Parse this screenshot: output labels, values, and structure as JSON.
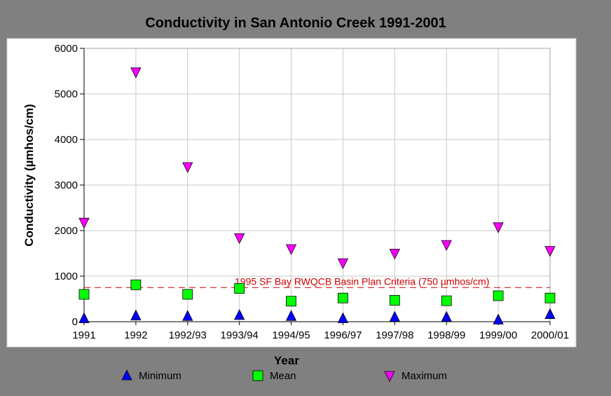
{
  "chart_data": {
    "type": "scatter",
    "title": "Conductivity in San Antonio Creek 1991-2001",
    "xlabel": "Year",
    "ylabel": "Conductivity (µmhos/cm)",
    "ylim": [
      0,
      6000
    ],
    "yticks": [
      0,
      1000,
      2000,
      3000,
      4000,
      5000,
      6000
    ],
    "grid": true,
    "legend_position": "bottom",
    "categories": [
      "1991",
      "1992",
      "1992/93",
      "1993/94",
      "1994/95",
      "1996/97",
      "1997/98",
      "1998/99",
      "1999/00",
      "2000/01"
    ],
    "series": [
      {
        "name": "Minimum",
        "marker": "triangle-up",
        "color": "#0000ff",
        "values": [
          70,
          130,
          120,
          140,
          120,
          70,
          100,
          100,
          40,
          160
        ]
      },
      {
        "name": "Mean",
        "marker": "square",
        "color": "#00ff00",
        "values": [
          600,
          810,
          600,
          730,
          450,
          520,
          470,
          460,
          570,
          520
        ]
      },
      {
        "name": "Maximum",
        "marker": "triangle-down",
        "color": "#ff00ff",
        "values": [
          2180,
          5480,
          3400,
          1840,
          1600,
          1290,
          1500,
          1690,
          2080,
          1560
        ]
      }
    ],
    "reference_line": {
      "value": 750,
      "label": "1995 SF Bay RWQCB Basin Plan Criteria (750 µmhos/cm)",
      "color": "#cc0000"
    }
  }
}
